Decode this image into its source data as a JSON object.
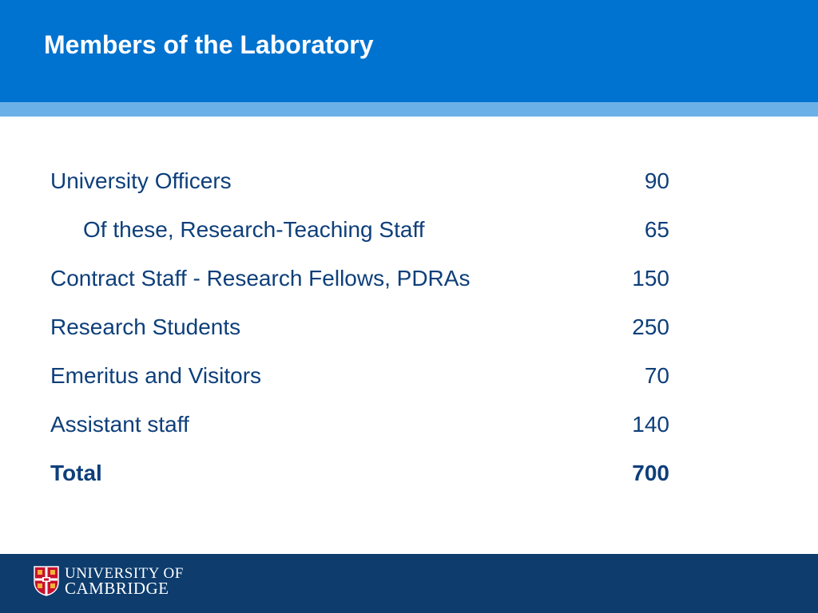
{
  "slide": {
    "title": "Members of the Laboratory"
  },
  "table": {
    "rows": [
      {
        "label": "University Officers",
        "value": "90"
      },
      {
        "label": "Of these, Research-Teaching Staff",
        "value": "65"
      },
      {
        "label": "Contract Staff - Research Fellows, PDRAs",
        "value": "150"
      },
      {
        "label": "Research Students",
        "value": "250"
      },
      {
        "label": "Emeritus and Visitors",
        "value": "70"
      },
      {
        "label": "Assistant staff",
        "value": "140"
      },
      {
        "label": "Total",
        "value": "700"
      }
    ]
  },
  "footer": {
    "logo_line1": "UNIVERSITY OF",
    "logo_line2": "CAMBRIDGE",
    "logo_icon": "university-crest-icon"
  },
  "colors": {
    "header": "#0072cf",
    "header_stripe": "#6cb0e8",
    "footer": "#0d3c6d",
    "text": "#0e3f7a",
    "crest_red": "#c8102e",
    "crest_gold": "#f2b13a"
  }
}
